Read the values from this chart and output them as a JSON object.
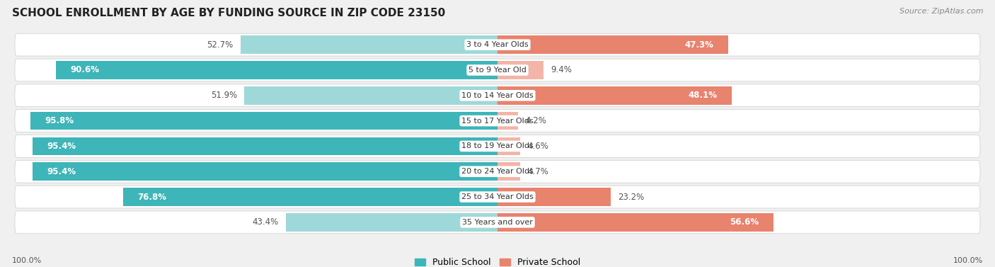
{
  "title": "SCHOOL ENROLLMENT BY AGE BY FUNDING SOURCE IN ZIP CODE 23150",
  "source": "Source: ZipAtlas.com",
  "categories": [
    "3 to 4 Year Olds",
    "5 to 9 Year Old",
    "10 to 14 Year Olds",
    "15 to 17 Year Olds",
    "18 to 19 Year Olds",
    "20 to 24 Year Olds",
    "25 to 34 Year Olds",
    "35 Years and over"
  ],
  "public_pct": [
    52.7,
    90.6,
    51.9,
    95.8,
    95.4,
    95.4,
    76.8,
    43.4
  ],
  "private_pct": [
    47.3,
    9.4,
    48.1,
    4.2,
    4.6,
    4.7,
    23.2,
    56.6
  ],
  "public_colors": [
    "#9fd8d8",
    "#3eb5b8",
    "#9fd8d8",
    "#3eb5b8",
    "#3eb5b8",
    "#3eb5b8",
    "#3eb5b8",
    "#9fd8d8"
  ],
  "private_colors": [
    "#e8836e",
    "#f2b5a8",
    "#e8836e",
    "#f2b5a8",
    "#f2b5a8",
    "#f2b5a8",
    "#e8836e",
    "#e8836e"
  ],
  "public_legend_color": "#3eb5b8",
  "private_legend_color": "#e8836e",
  "background_color": "#f0f0f0",
  "row_bg_color": "#ffffff",
  "title_fontsize": 11,
  "bar_fontsize": 8.5,
  "legend_fontsize": 9,
  "axis_fontsize": 8,
  "x_left_label": "100.0%",
  "x_right_label": "100.0%"
}
